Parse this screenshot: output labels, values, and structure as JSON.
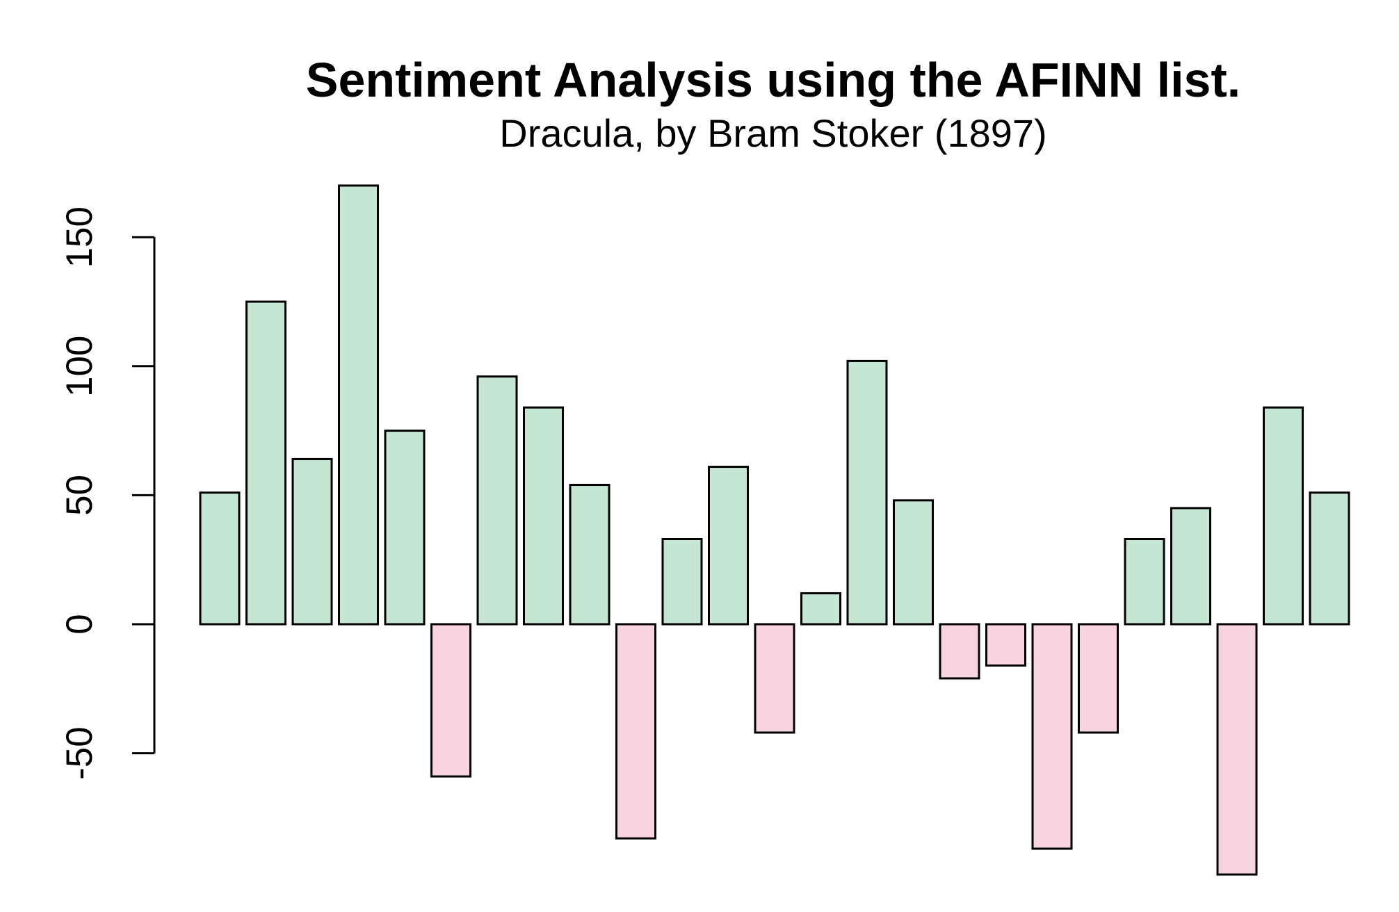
{
  "chart_data": {
    "type": "bar",
    "title": "Sentiment Analysis using the AFINN list.",
    "subtitle": "Dracula, by Bram Stoker (1897)",
    "xlabel": "",
    "ylabel": "",
    "values": [
      51,
      125,
      64,
      170,
      75,
      -59,
      96,
      84,
      54,
      -83,
      33,
      61,
      -42,
      12,
      102,
      48,
      -21,
      -16,
      -87,
      -42,
      33,
      45,
      -97,
      84,
      51
    ],
    "ylim": [
      -97,
      170
    ],
    "yticks": [
      -50,
      0,
      50,
      100,
      150
    ],
    "ytick_labels": [
      "-50",
      "0",
      "50",
      "100",
      "150"
    ],
    "grid": false,
    "legend": "none",
    "colors": {
      "positive": "#c5e6d2",
      "negative": "#f8d3e0",
      "stroke": "#000000"
    }
  }
}
